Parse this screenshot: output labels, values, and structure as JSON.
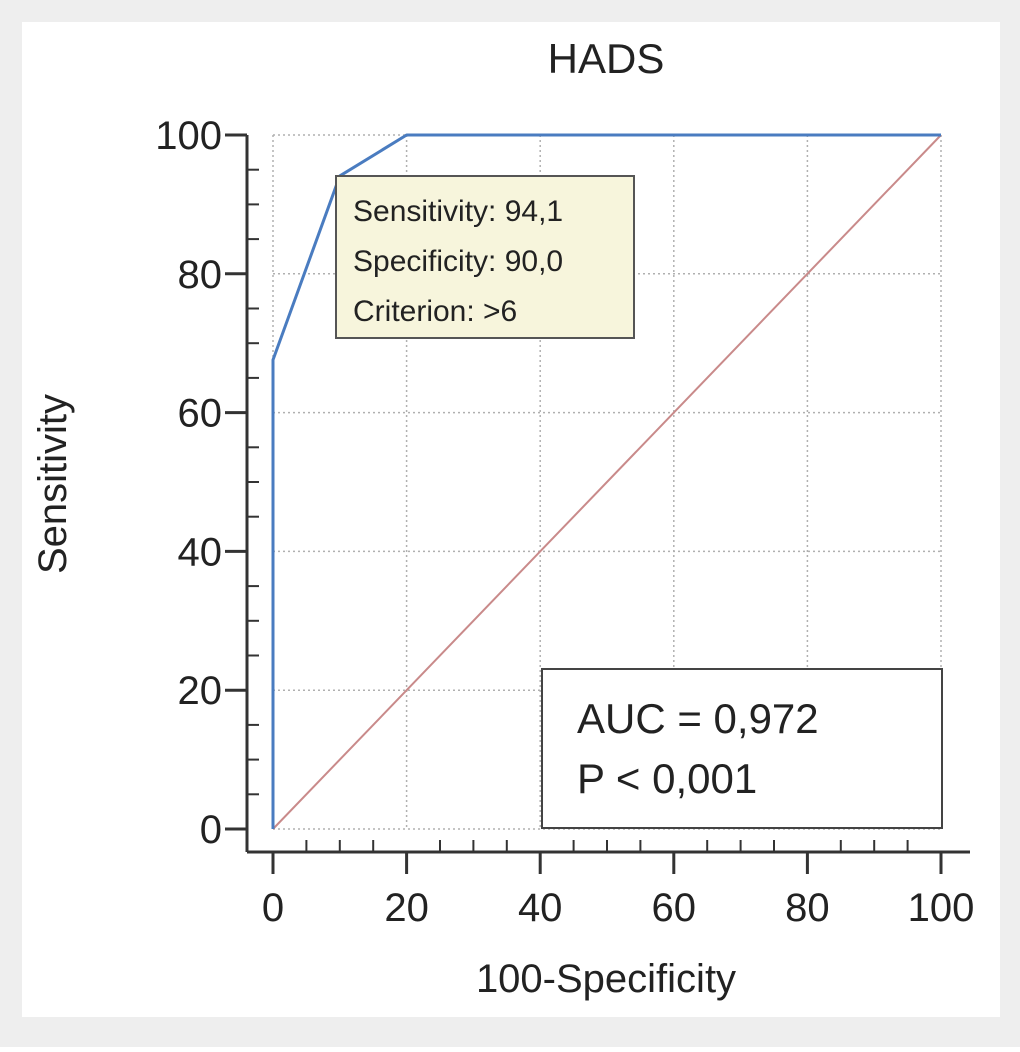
{
  "chart_data": {
    "type": "line",
    "title": "HADS",
    "xlabel": "100-Specificity",
    "ylabel": "Sensitivity",
    "xlim": [
      0,
      100
    ],
    "ylim": [
      0,
      100
    ],
    "xticks": [
      "0",
      "20",
      "40",
      "60",
      "80",
      "100"
    ],
    "yticks": [
      "0",
      "20",
      "40",
      "60",
      "80",
      "100"
    ],
    "grid": true,
    "series": [
      {
        "name": "ROC curve",
        "color": "#4a7cc0",
        "x": [
          0,
          0,
          10,
          20,
          100
        ],
        "y": [
          0,
          67.6,
          94.1,
          100,
          100
        ]
      },
      {
        "name": "Reference line",
        "color": "#c98a8a",
        "x": [
          0,
          100
        ],
        "y": [
          0,
          100
        ]
      }
    ],
    "annotations": {
      "tooltip": {
        "sensitivity": "Sensitivity: 94,1",
        "specificity": "Specificity: 90,0",
        "criterion": "Criterion: >6"
      },
      "auc": "AUC = 0,972",
      "p_value": "P < 0,001"
    }
  },
  "colors": {
    "roc": "#4a7cc0",
    "reference": "#c98a8a",
    "grid": "#b0b0b0",
    "axis": "#333333",
    "tooltip_bg": "#f7f5dc",
    "outer_bg": "#eeeeee",
    "plot_bg": "#ffffff"
  }
}
